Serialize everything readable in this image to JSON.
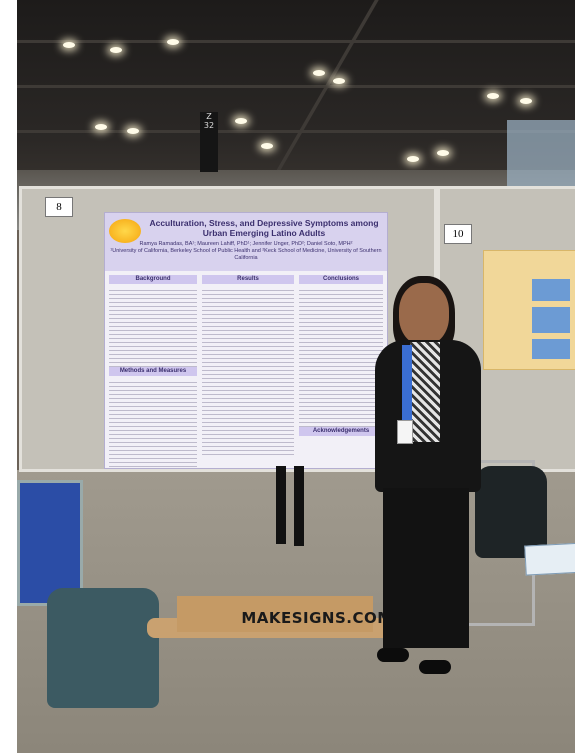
{
  "scene": {
    "description_colors": {
      "poster_header": "#d8d2ee",
      "poster_accent": "#3b2f6e",
      "floor": "#a09a8e"
    }
  },
  "boards": {
    "left_number": "8",
    "right_number": "10"
  },
  "poster": {
    "title": "Acculturation, Stress, and Depressive Symptoms among Urban Emerging Latino Adults",
    "authors": "Ramya Ramadas, BA¹; Maureen Lahiff, PhD¹; Jennifer Unger, PhD²; Daniel Soto, MPH²",
    "affiliations": "¹University of California, Berkeley School of Public Health and ²Keck School of Medicine, University of Southern California",
    "sections": {
      "background": "Background",
      "methods": "Methods and Measures",
      "results": "Results",
      "conclusions": "Conclusions",
      "acknowledgements": "Acknowledgements"
    }
  },
  "pillar_sign": {
    "line1": "Z",
    "line2": "32"
  },
  "box_label": "MAKESIGNS.COM"
}
